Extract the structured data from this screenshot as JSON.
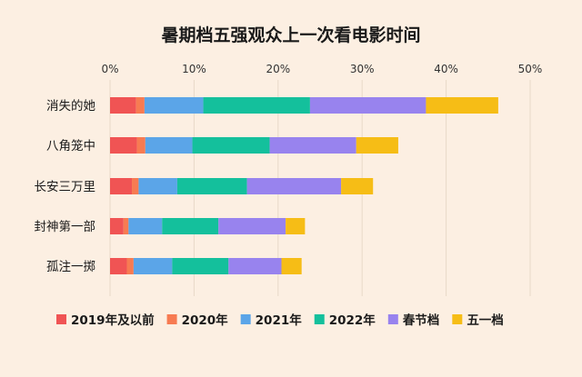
{
  "chart_data": {
    "type": "bar",
    "orientation": "horizontal",
    "stacked": true,
    "title": "暑期档五强观众上一次看电影时间",
    "categories": [
      "消失的她",
      "八角笼中",
      "长安三万里",
      "封神第一部",
      "孤注一掷"
    ],
    "x_ticks": [
      "0%",
      "10%",
      "20%",
      "30%",
      "40%",
      "50%"
    ],
    "xlim": [
      0,
      50
    ],
    "grid": true,
    "legend_position": "bottom",
    "series": [
      {
        "name": "2019年及以前",
        "color": "#f05454",
        "values": [
          3.1,
          3.2,
          2.6,
          1.6,
          2.0
        ]
      },
      {
        "name": "2020年",
        "color": "#f77b52",
        "values": [
          1.0,
          1.0,
          0.8,
          0.6,
          0.8
        ]
      },
      {
        "name": "2021年",
        "color": "#5ba5e8",
        "values": [
          7.0,
          5.6,
          4.6,
          4.0,
          4.6
        ]
      },
      {
        "name": "2022年",
        "color": "#14c09c",
        "values": [
          12.7,
          9.2,
          8.3,
          6.7,
          6.7
        ]
      },
      {
        "name": "春节档",
        "color": "#9883ee",
        "values": [
          13.8,
          10.3,
          11.2,
          8.0,
          6.3
        ]
      },
      {
        "name": "五一档",
        "color": "#f6bd16",
        "values": [
          8.6,
          5.0,
          3.8,
          2.3,
          2.4
        ]
      }
    ]
  }
}
